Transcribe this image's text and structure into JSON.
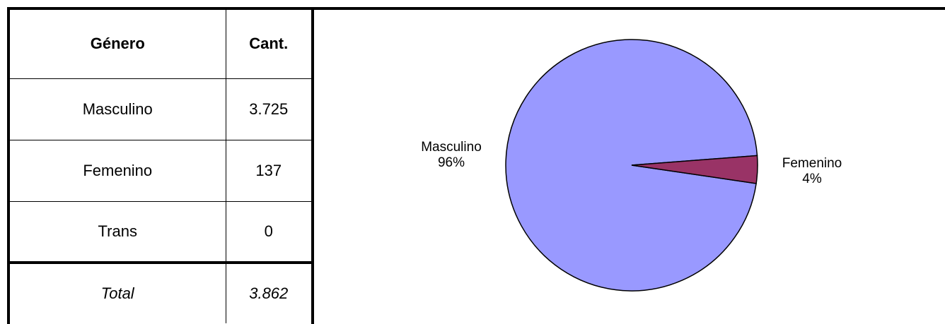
{
  "table": {
    "headers": {
      "genero": "Género",
      "cant": "Cant."
    },
    "rows": [
      {
        "genero": "Masculino",
        "cant": "3.725"
      },
      {
        "genero": "Femenino",
        "cant": "137"
      },
      {
        "genero": "Trans",
        "cant": "0"
      }
    ],
    "total": {
      "label": "Total",
      "value": "3.862"
    }
  },
  "chart_data": {
    "type": "pie",
    "categories": [
      "Masculino",
      "Femenino"
    ],
    "values": [
      3725,
      137
    ],
    "percent_labels": [
      "96%",
      "4%"
    ],
    "colors": [
      "#9999FF",
      "#993366"
    ],
    "title": "",
    "legend": "none"
  }
}
